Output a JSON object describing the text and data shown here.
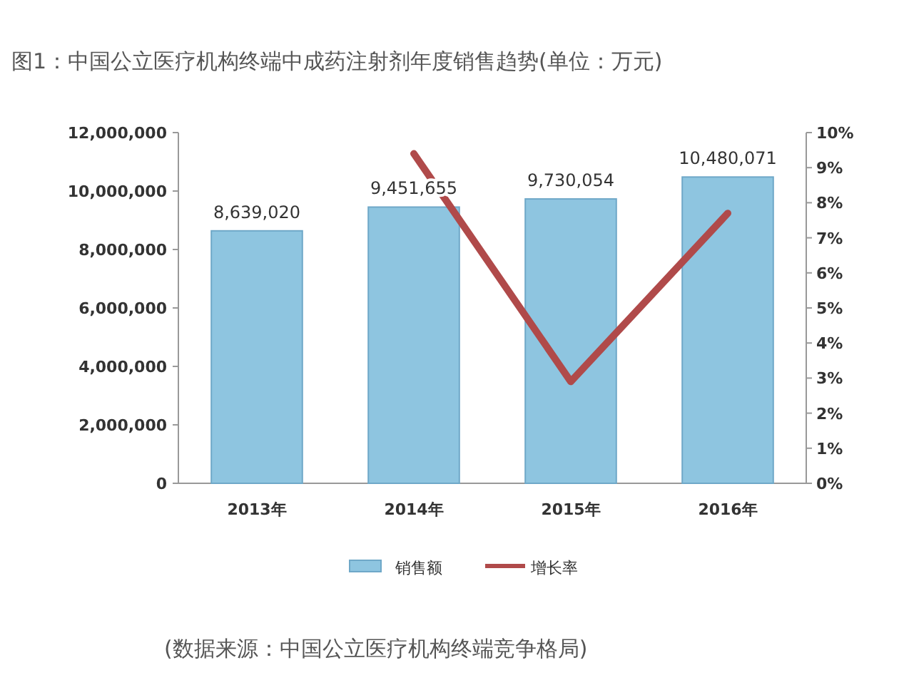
{
  "chart_data": {
    "type": "bar",
    "title": "图1：中国公立医疗机构终端中成药注射剂年度销售趋势(单位：万元)",
    "categories": [
      "2013年",
      "2014年",
      "2015年",
      "2016年"
    ],
    "series": [
      {
        "name": "销售额",
        "color": "#8ec5e0",
        "values": [
          8639020,
          9451655,
          9730054,
          10480071
        ],
        "value_labels": [
          "8,639,020",
          "9,451,655",
          "9,730,054",
          "10,480,071"
        ]
      },
      {
        "name": "增长率",
        "type": "line",
        "axis": "y2",
        "color": "#b04a4a",
        "values": [
          null,
          9.4,
          2.9,
          7.7
        ]
      }
    ],
    "ylim": [
      0,
      12000000
    ],
    "yticks": [
      0,
      {
        "value": 2000000,
        "label": "2,000,000"
      },
      {
        "value": 4000000,
        "label": "4,000,000"
      },
      {
        "value": 6000000,
        "label": "6,000,000"
      },
      {
        "value": 8000000,
        "label": "8,000,000"
      },
      {
        "value": 10000000,
        "label": "10,000,000"
      },
      {
        "value": 12000000,
        "label": "12,000,000"
      }
    ],
    "y2lim": [
      0,
      10
    ],
    "y2ticks": [
      {
        "value": 0,
        "label": "0%"
      },
      {
        "value": 1,
        "label": "1%"
      },
      {
        "value": 2,
        "label": "2%"
      },
      {
        "value": 3,
        "label": "3%"
      },
      {
        "value": 4,
        "label": "4%"
      },
      {
        "value": 5,
        "label": "5%"
      },
      {
        "value": 6,
        "label": "6%"
      },
      {
        "value": 7,
        "label": "7%"
      },
      {
        "value": 8,
        "label": "8%"
      },
      {
        "value": 9,
        "label": "9%"
      },
      {
        "value": 10,
        "label": "10%"
      }
    ],
    "legend": "bottom",
    "annotations": [
      "(数据来源：中国公立医疗机构终端竞争格局)"
    ]
  }
}
